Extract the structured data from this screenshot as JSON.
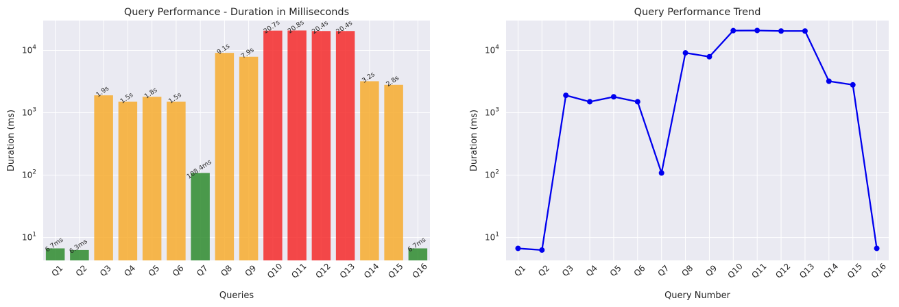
{
  "chart_data": [
    {
      "type": "bar",
      "title": "Query Performance - Duration in Milliseconds",
      "xlabel": "Queries",
      "ylabel": "Duration (ms)",
      "yscale": "log",
      "ylim": [
        4.3,
        30000
      ],
      "yticks": [
        {
          "value": 10,
          "base": "10",
          "exp": "1"
        },
        {
          "value": 100,
          "base": "10",
          "exp": "2"
        },
        {
          "value": 1000,
          "base": "10",
          "exp": "3"
        },
        {
          "value": 10000,
          "base": "10",
          "exp": "4"
        }
      ],
      "grid": true,
      "categories": [
        "Q1",
        "Q2",
        "Q3",
        "Q4",
        "Q5",
        "Q6",
        "Q7",
        "Q8",
        "Q9",
        "Q10",
        "Q11",
        "Q12",
        "Q13",
        "Q14",
        "Q15",
        "Q16"
      ],
      "values": [
        6.7,
        6.3,
        1900,
        1500,
        1800,
        1500,
        108.4,
        9100,
        7900,
        20700,
        20800,
        20400,
        20400,
        3200,
        2800,
        6.7
      ],
      "data_labels": [
        "6.7ms",
        "6.3ms",
        "1.9s",
        "1.5s",
        "1.8s",
        "1.5s",
        "108.4ms",
        "9.1s",
        "7.9s",
        "20.7s",
        "20.8s",
        "20.4s",
        "20.4s",
        "3.2s",
        "2.8s",
        "6.7ms"
      ],
      "colors": {
        "fast": "#2e8b2e",
        "medium": "#f7ab2e",
        "slow": "#f52a2a"
      }
    },
    {
      "type": "line",
      "title": "Query Performance Trend",
      "xlabel": "Query Number",
      "ylabel": "Duration (ms)",
      "yscale": "log",
      "ylim": [
        4.3,
        30000
      ],
      "yticks": [
        {
          "value": 10,
          "base": "10",
          "exp": "1"
        },
        {
          "value": 100,
          "base": "10",
          "exp": "2"
        },
        {
          "value": 1000,
          "base": "10",
          "exp": "3"
        },
        {
          "value": 10000,
          "base": "10",
          "exp": "4"
        }
      ],
      "grid": true,
      "categories": [
        "Q1",
        "Q2",
        "Q3",
        "Q4",
        "Q5",
        "Q6",
        "Q7",
        "Q8",
        "Q9",
        "Q10",
        "Q11",
        "Q12",
        "Q13",
        "Q14",
        "Q15",
        "Q16"
      ],
      "values": [
        6.7,
        6.3,
        1900,
        1500,
        1800,
        1500,
        108.4,
        9100,
        7900,
        20700,
        20800,
        20400,
        20400,
        3200,
        2800,
        6.7
      ],
      "color": "#0000ee"
    }
  ]
}
